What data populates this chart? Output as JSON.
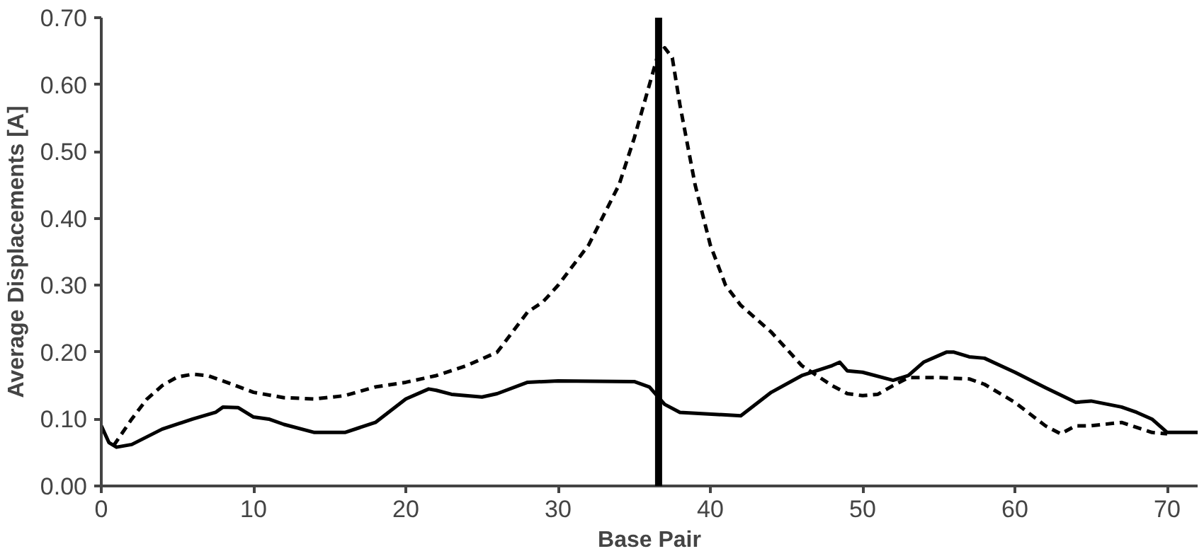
{
  "chart_data": {
    "type": "line",
    "xlabel": "Base Pair",
    "ylabel": "Average Displacements [A]",
    "xlim": [
      0,
      72
    ],
    "xticks": [
      0,
      10,
      20,
      30,
      40,
      50,
      60,
      70
    ],
    "ylim": [
      0,
      0.7
    ],
    "yticks": [
      {
        "value": 0,
        "label": "0.00"
      },
      {
        "value": 0.1,
        "label": "0.10"
      },
      {
        "value": 0.2,
        "label": "0.20"
      },
      {
        "value": 0.3,
        "label": "0.30"
      },
      {
        "value": 0.4,
        "label": "0.40"
      },
      {
        "value": 0.5,
        "label": "0.50"
      },
      {
        "value": 0.6,
        "label": "0.60"
      },
      {
        "value": 0.7,
        "label": "0.70"
      }
    ],
    "grid": false,
    "series": [
      {
        "color": "#000000",
        "line_style": "solid",
        "x": [
          0,
          0.5,
          1,
          2,
          4,
          6,
          7.5,
          8,
          9,
          10,
          11,
          12,
          14,
          16,
          18,
          20,
          21.5,
          22,
          23,
          25,
          26,
          28,
          30,
          35,
          36,
          37,
          38,
          42,
          44,
          46,
          48,
          48.5,
          49,
          50,
          52,
          53,
          54,
          55.5,
          56,
          57,
          58,
          60,
          62,
          64,
          65,
          67,
          68,
          69,
          70,
          72
        ],
        "values": [
          0.09,
          0.065,
          0.058,
          0.062,
          0.085,
          0.1,
          0.11,
          0.118,
          0.117,
          0.103,
          0.1,
          0.092,
          0.08,
          0.08,
          0.095,
          0.13,
          0.145,
          0.143,
          0.137,
          0.133,
          0.138,
          0.155,
          0.157,
          0.156,
          0.148,
          0.122,
          0.11,
          0.105,
          0.14,
          0.165,
          0.18,
          0.185,
          0.172,
          0.17,
          0.158,
          0.165,
          0.185,
          0.2,
          0.2,
          0.193,
          0.191,
          0.17,
          0.147,
          0.125,
          0.127,
          0.118,
          0.11,
          0.1,
          0.08,
          0.08
        ]
      },
      {
        "color": "#000000",
        "line_style": "dashed",
        "x": [
          0.8,
          2,
          3,
          4,
          5,
          6,
          7,
          8,
          10,
          12,
          14,
          16,
          18,
          20,
          22,
          24,
          26,
          27,
          28,
          29,
          30,
          32,
          34,
          35,
          36,
          36.5,
          37,
          37.5,
          38,
          39,
          40,
          41,
          42,
          44,
          46,
          48,
          49,
          50,
          51,
          52,
          53,
          55,
          57,
          58,
          60,
          62,
          63,
          64,
          65,
          67,
          69,
          70
        ],
        "values": [
          0.06,
          0.1,
          0.13,
          0.15,
          0.163,
          0.167,
          0.165,
          0.157,
          0.14,
          0.132,
          0.13,
          0.135,
          0.148,
          0.155,
          0.165,
          0.18,
          0.2,
          0.23,
          0.26,
          0.275,
          0.3,
          0.36,
          0.45,
          0.52,
          0.6,
          0.64,
          0.655,
          0.64,
          0.57,
          0.45,
          0.36,
          0.3,
          0.27,
          0.23,
          0.18,
          0.15,
          0.138,
          0.135,
          0.137,
          0.15,
          0.162,
          0.162,
          0.16,
          0.152,
          0.125,
          0.09,
          0.078,
          0.09,
          0.09,
          0.095,
          0.08,
          0.078
        ]
      }
    ],
    "ref_lines": [
      {
        "axis": "x",
        "value": 36.6,
        "color": "#000000",
        "line_style": "solid"
      }
    ]
  }
}
